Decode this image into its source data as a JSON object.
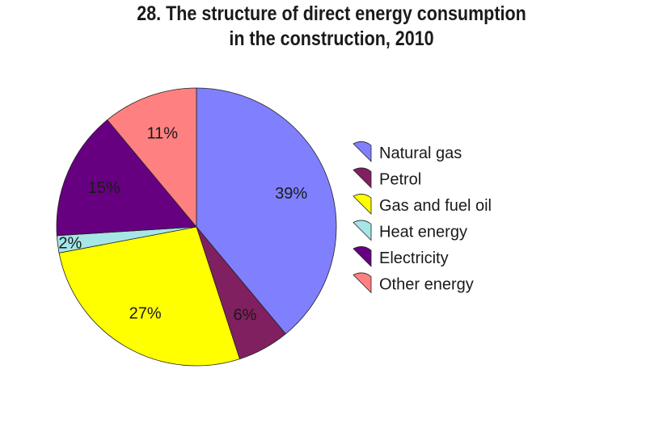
{
  "chart_data": {
    "type": "pie",
    "title": [
      "28. The structure of direct energy consumption",
      "in the construction, 2010"
    ],
    "slices": [
      {
        "name": "Natural gas",
        "value": 39,
        "label": "39%",
        "color": "#8080ff"
      },
      {
        "name": "Petrol",
        "value": 6,
        "label": "6%",
        "color": "#802060"
      },
      {
        "name": "Gas and fuel oil",
        "value": 27,
        "label": "27%",
        "color": "#ffff00"
      },
      {
        "name": "Heat energy",
        "value": 2,
        "label": "2%",
        "color": "#a6e6e6"
      },
      {
        "name": "Electricity",
        "value": 15,
        "label": "15%",
        "color": "#660080"
      },
      {
        "name": "Other energy",
        "value": 11,
        "label": "11%",
        "color": "#ff8080"
      }
    ],
    "start_angle": "12 o'clock",
    "direction": "clockwise",
    "legend_position": "right"
  }
}
